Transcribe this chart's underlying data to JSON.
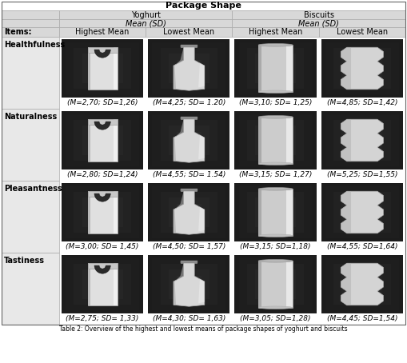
{
  "title": "Package Shape",
  "subtitle_caption": "Table 2: Overview of the highest and lowest means of package shapes of yoghurt and biscuits",
  "col_header_row3": [
    "Items:",
    "Highest Mean",
    "Lowest Mean",
    "Highest Mean",
    "Lowest Mean"
  ],
  "rows": [
    {
      "label": "Healthfulness",
      "values": [
        "(M=2,70; SD=1,26)",
        "(M=4,25; SD= 1.20)",
        "(M=3,10; SD= 1,25)",
        "(M=4,85; SD=1,42)"
      ]
    },
    {
      "label": "Naturalness",
      "values": [
        "(M=2,80; SD=1,24)",
        "(M=4,55; SD= 1.54)",
        "(M=3,15; SD= 1,27)",
        "(M=5,25; SD=1,55)"
      ]
    },
    {
      "label": "Pleasantness",
      "values": [
        "(M=3,00; SD= 1,45)",
        "(M=4,50; SD= 1,57)",
        "(M=3,15; SD=1,18)",
        "(M=4,55; SD=1,64)"
      ]
    },
    {
      "label": "Tastiness",
      "values": [
        "(M=2,75; SD= 1,33)",
        "(M=4,30; SD= 1,63)",
        "(M=3,05; SD=1,28)",
        "(M=4,45; SD=1,54)"
      ]
    }
  ],
  "header_bg": "#d8d8d8",
  "label_col_bg": "#e8e8e8",
  "image_bg_dark": "#1a1a1a",
  "image_bg_mid": "#3a3a3a",
  "shape_color": "#d0d0d0",
  "shape_color_bright": "#e8e8e8",
  "title_fontsize": 8,
  "header_fontsize": 7,
  "label_fontsize": 7,
  "cell_fontsize": 6.5,
  "caption_fontsize": 5.5
}
